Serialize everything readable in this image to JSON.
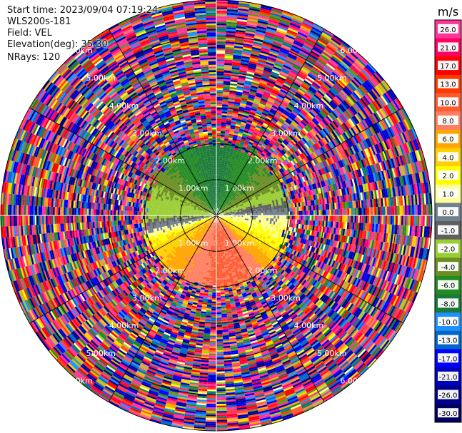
{
  "header": {
    "start_time": "Start time: 2023/09/04 07:19:24",
    "instrument": "WLS200s-181",
    "field": "Field: VEL",
    "elevation": "Elevation(deg): 35.30",
    "nrays": "NRays: 120"
  },
  "chart_data": {
    "type": "heatmap",
    "projection": "polar-ppi",
    "field": "VEL",
    "rays": 120,
    "range_rings_km": [
      1.0,
      2.0,
      3.0,
      4.0,
      5.0,
      6.0
    ],
    "range_ring_labels": [
      "1.00km",
      "2.00km",
      "3.00km",
      "4.00km",
      "5.00km",
      "6.00km"
    ],
    "grid": true,
    "colorbar": {
      "unit": "m/s",
      "placement": "right",
      "tick_labels": [
        "26.0",
        "21.0",
        "17.0",
        "13.0",
        "10.0",
        "8.0",
        "6.0",
        "4.0",
        "2.0",
        "1.0",
        "0.0",
        "-1.0",
        "-2.0",
        "-4.0",
        "-6.0",
        "-8.0",
        "-10.0",
        "-13.0",
        "-17.0",
        "-21.0",
        "-26.0",
        "-30.0"
      ],
      "colors": [
        "#ff3399",
        "#ff0060",
        "#ff0000",
        "#ff3a00",
        "#ff5a30",
        "#ff8060",
        "#ffa500",
        "#ffd000",
        "#ffff00",
        "#ffff99",
        "#708090",
        "#5f5f5f",
        "#9acd32",
        "#6b8e23",
        "#228b22",
        "#1a7a3a",
        "#1e90ff",
        "#0066cc",
        "#0000ff",
        "#0000bb",
        "#00008b",
        "#000060"
      ]
    },
    "data_profile": {
      "clean_range_km": 2.2,
      "azimuth_deg": [
        0,
        30,
        60,
        90,
        120,
        150,
        180,
        210,
        240,
        270,
        300,
        330
      ],
      "near_field_velocity_ms": [
        -9.0,
        -7.0,
        -5.0,
        0.0,
        2.0,
        8.0,
        8.5,
        6.0,
        3.0,
        -2.5,
        -4.5,
        -7.5
      ]
    }
  }
}
